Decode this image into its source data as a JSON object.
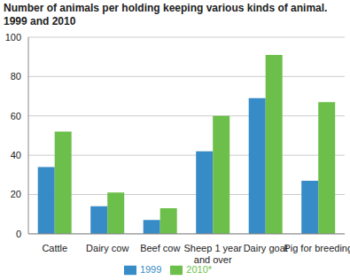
{
  "chart_data": {
    "type": "bar",
    "title": "Number of animals per holding keeping various kinds of animal.",
    "subtitle": "1999 and 2010",
    "categories": [
      "Cattle",
      "Dairy cow",
      "Beef cow",
      "Sheep 1 year and over",
      "Dairy goat",
      "Pig for breeding"
    ],
    "series": [
      {
        "name": "1999",
        "color": "#378bc6",
        "values": [
          34,
          14,
          7,
          42,
          69,
          27
        ]
      },
      {
        "name": "2010*",
        "color": "#6cbf4b",
        "values": [
          52,
          21,
          13,
          60,
          91,
          67
        ]
      }
    ],
    "ylim": [
      0,
      100
    ],
    "yticks": [
      0,
      20,
      40,
      60,
      80,
      100
    ],
    "grid": true,
    "legend": "bottom"
  }
}
